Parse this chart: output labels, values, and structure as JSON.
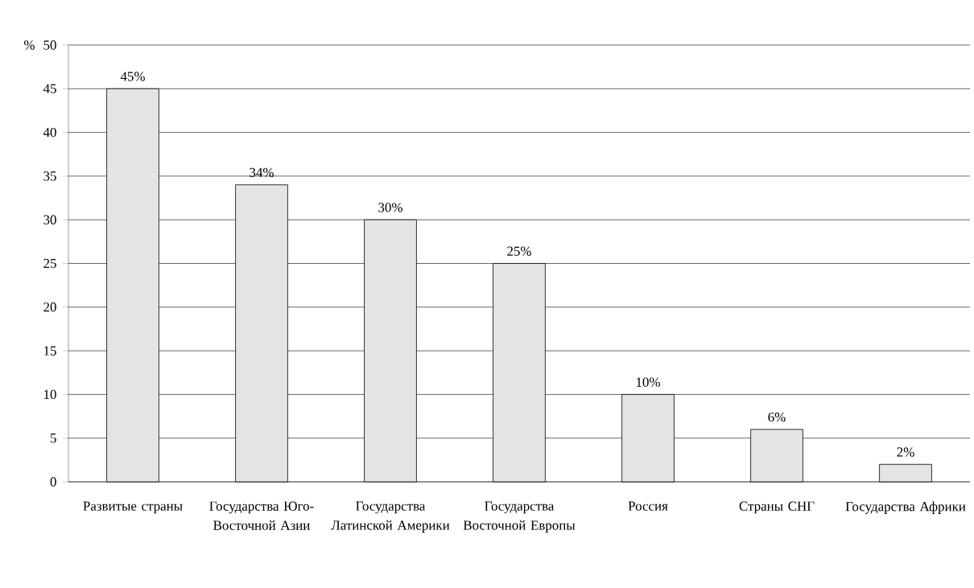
{
  "chart_data": {
    "type": "bar",
    "ylabel": "%",
    "categories": [
      "Развитые страны",
      "Государства Юго-Восточной Азии",
      "Государства Латинской Америки",
      "Государства Восточной Европы",
      "Россия",
      "Страны СНГ",
      "Государства Африки"
    ],
    "values": [
      45,
      34,
      30,
      25,
      10,
      6,
      2
    ],
    "value_labels": [
      "45%",
      "34%",
      "30%",
      "25%",
      "10%",
      "6%",
      "2%"
    ],
    "color": "#e4e4e4",
    "ylim": [
      0,
      50
    ],
    "yticks": [
      0,
      5,
      10,
      15,
      20,
      25,
      30,
      35,
      40,
      45,
      50
    ],
    "grid": "y"
  }
}
